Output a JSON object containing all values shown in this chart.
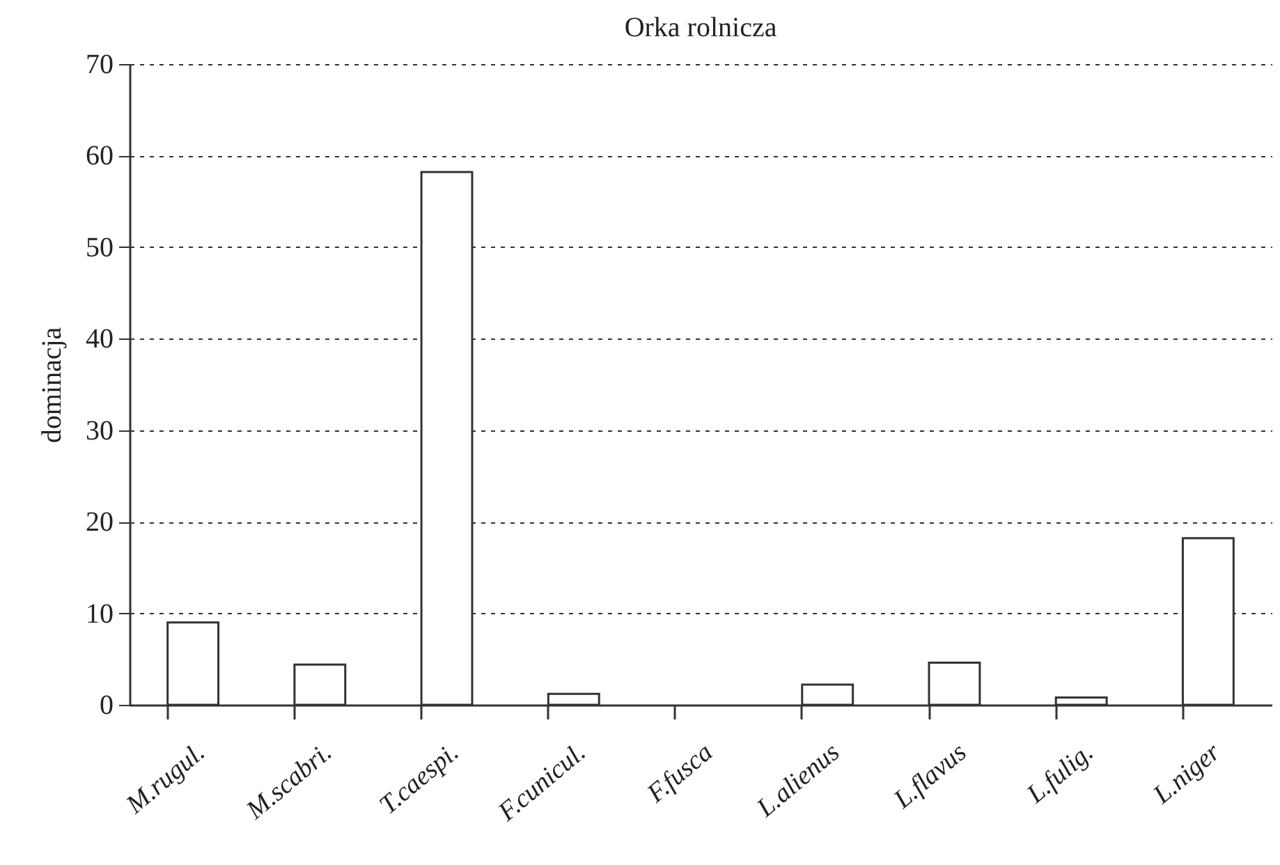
{
  "chart_data": {
    "type": "bar",
    "title": "Orka rolnicza",
    "ylabel": "dominacja",
    "categories": [
      "M.rugul.",
      "M.scabri.",
      "T.caespi.",
      "F.cunicul.",
      "F.fusca",
      "L.alienus",
      "L.flavus",
      "L.fulig.",
      "L.niger"
    ],
    "values": [
      9.0,
      4.4,
      58.2,
      1.2,
      0,
      2.2,
      4.6,
      0.8,
      18.2
    ],
    "color": "#ffffff",
    "ylim": [
      0,
      70
    ],
    "yticks": [
      0,
      10,
      20,
      30,
      40,
      50,
      60,
      70
    ],
    "grid": "y"
  }
}
